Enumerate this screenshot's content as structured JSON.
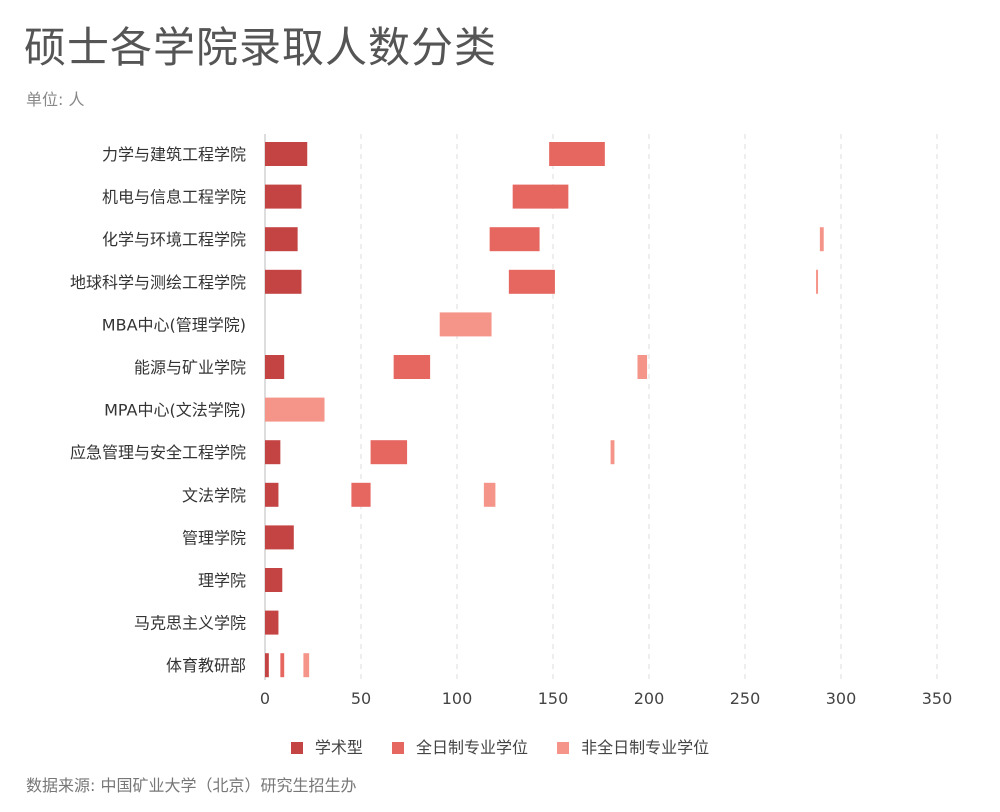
{
  "title": "硕士各学院录取人数分类",
  "subtitle": "单位: 人",
  "source": "数据来源: 中国矿业大学（北京）研究生招生办",
  "colors": {
    "academic": "#c44444",
    "fulltime": "#e66660",
    "parttime": "#f5958a"
  },
  "chart_data": {
    "type": "bar",
    "orientation": "horizontal",
    "stacking": "floating",
    "categories": [
      "力学与建筑工程学院",
      "机电与信息工程学院",
      "化学与环境工程学院",
      "地球科学与测绘工程学院",
      "MBA中心(管理学院)",
      "能源与矿业学院",
      "MPA中心(文法学院)",
      "应急管理与安全工程学院",
      "文法学院",
      "管理学院",
      "理学院",
      "马克思主义学院",
      "体育教研部"
    ],
    "series": [
      {
        "name": "学术型",
        "key": "academic",
        "ranges": [
          [
            0,
            22
          ],
          [
            0,
            19
          ],
          [
            0,
            17
          ],
          [
            0,
            19
          ],
          null,
          [
            0,
            10
          ],
          null,
          [
            0,
            8
          ],
          [
            0,
            7
          ],
          [
            0,
            15
          ],
          [
            0,
            9
          ],
          [
            0,
            7
          ],
          [
            0,
            2
          ]
        ]
      },
      {
        "name": "全日制专业学位",
        "key": "fulltime",
        "ranges": [
          [
            148,
            177
          ],
          [
            129,
            158
          ],
          [
            117,
            143
          ],
          [
            127,
            151
          ],
          null,
          [
            67,
            86
          ],
          null,
          [
            55,
            74
          ],
          [
            45,
            55
          ],
          null,
          null,
          null,
          [
            8,
            10
          ]
        ]
      },
      {
        "name": "非全日制专业学位",
        "key": "parttime",
        "ranges": [
          null,
          null,
          [
            289,
            291
          ],
          [
            287,
            288
          ],
          [
            91,
            118
          ],
          [
            194,
            199
          ],
          [
            0,
            31
          ],
          [
            180,
            182
          ],
          [
            114,
            120
          ],
          null,
          null,
          null,
          [
            20,
            23
          ]
        ]
      }
    ],
    "xlim": [
      0,
      350
    ],
    "xticks": [
      0,
      50,
      100,
      150,
      200,
      250,
      300,
      350
    ],
    "grid": "vertical dashed",
    "legend": "bottom"
  }
}
